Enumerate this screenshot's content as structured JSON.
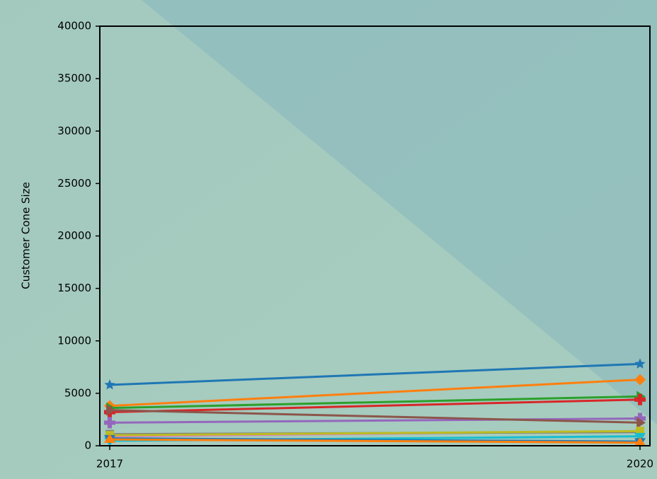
{
  "chart_data": {
    "type": "line",
    "y_label": "Customer Cone Size",
    "categories": [
      "2017",
      "2020"
    ],
    "ylim": [
      0,
      40000
    ],
    "yticks": [
      0,
      5000,
      10000,
      15000,
      20000,
      25000,
      30000,
      35000,
      40000
    ],
    "series": [
      {
        "color": "#1f77b4",
        "marker": "star",
        "values": [
          5800,
          7800
        ]
      },
      {
        "color": "#ff7f0e",
        "marker": "diamond",
        "values": [
          3800,
          6300
        ]
      },
      {
        "color": "#2ca02c",
        "marker": "triangle-right",
        "values": [
          3600,
          4700
        ]
      },
      {
        "color": "#d62728",
        "marker": "plus",
        "values": [
          3200,
          4400
        ]
      },
      {
        "color": "#9467bd",
        "marker": "plus",
        "values": [
          2200,
          2600
        ]
      },
      {
        "color": "#8c564b",
        "marker": "triangle-right",
        "values": [
          3400,
          2200
        ]
      },
      {
        "color": "#e377c2",
        "marker": "square",
        "values": [
          900,
          1400
        ]
      },
      {
        "color": "#7f7f7f",
        "marker": "square",
        "values": [
          1100,
          1300
        ]
      },
      {
        "color": "#bcbd22",
        "marker": "square",
        "values": [
          1000,
          1400
        ]
      },
      {
        "color": "#17becf",
        "marker": "triangle-down",
        "values": [
          470,
          900
        ]
      },
      {
        "color": "#1f77b4",
        "marker": "triangle-down",
        "values": [
          700,
          400
        ]
      },
      {
        "color": "#ff7f0e",
        "marker": "triangle-up",
        "values": [
          600,
          300
        ]
      }
    ]
  }
}
